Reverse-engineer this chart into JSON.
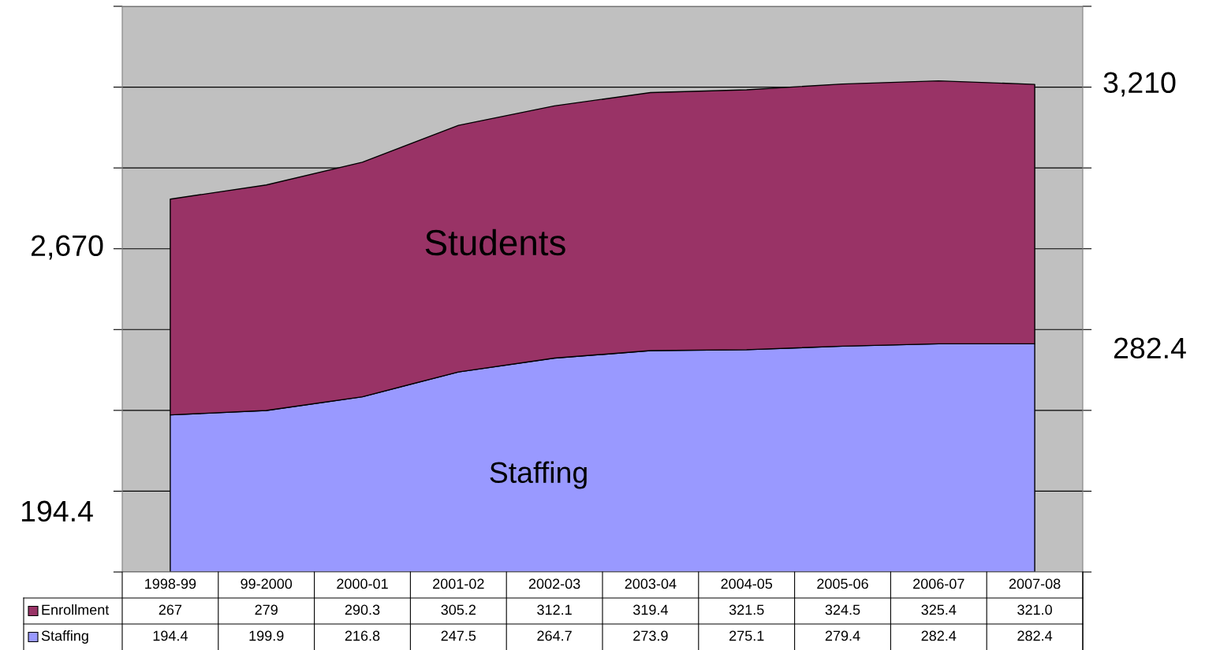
{
  "chart_data": {
    "type": "area",
    "stacked": true,
    "categories": [
      "1998-99",
      "99-2000",
      "2000-01",
      "2001-02",
      "2002-03",
      "2003-04",
      "2004-05",
      "2005-06",
      "2006-07",
      "2007-08"
    ],
    "series": [
      {
        "name": "Staffing",
        "color": "#9999ff",
        "values": [
          194.4,
          199.9,
          216.8,
          247.5,
          264.7,
          273.9,
          275.1,
          279.4,
          282.4,
          282.4
        ],
        "value_labels": [
          "194.4",
          "199.9",
          "216.8",
          "247.5",
          "264.7",
          "273.9",
          "275.1",
          "279.4",
          "282.4",
          "282.4"
        ]
      },
      {
        "name": "Enrollment",
        "color": "#993366",
        "values": [
          267,
          279,
          290.3,
          305.2,
          312.1,
          319.4,
          321.5,
          324.5,
          325.4,
          321.0
        ],
        "value_labels": [
          "267",
          "279",
          "290.3",
          "305.2",
          "312.1",
          "319.4",
          "321.5",
          "324.5",
          "325.4",
          "321.0"
        ]
      }
    ],
    "ylim": [
      0,
      700
    ],
    "yticks": [
      {
        "value": 0,
        "label": null
      },
      {
        "value": 100,
        "label": null
      },
      {
        "value": 200,
        "label": null
      },
      {
        "value": 300,
        "label": null
      },
      {
        "value": 400,
        "label": null
      },
      {
        "value": 500,
        "label": null
      },
      {
        "value": 600,
        "label": null
      },
      {
        "value": 700,
        "label": null
      }
    ],
    "grid": "y",
    "data_labels": true,
    "legend": "bottom",
    "annotations": [
      "2,670",
      "3,210",
      "282.4",
      "194.4",
      "Students",
      "Staffing"
    ]
  }
}
